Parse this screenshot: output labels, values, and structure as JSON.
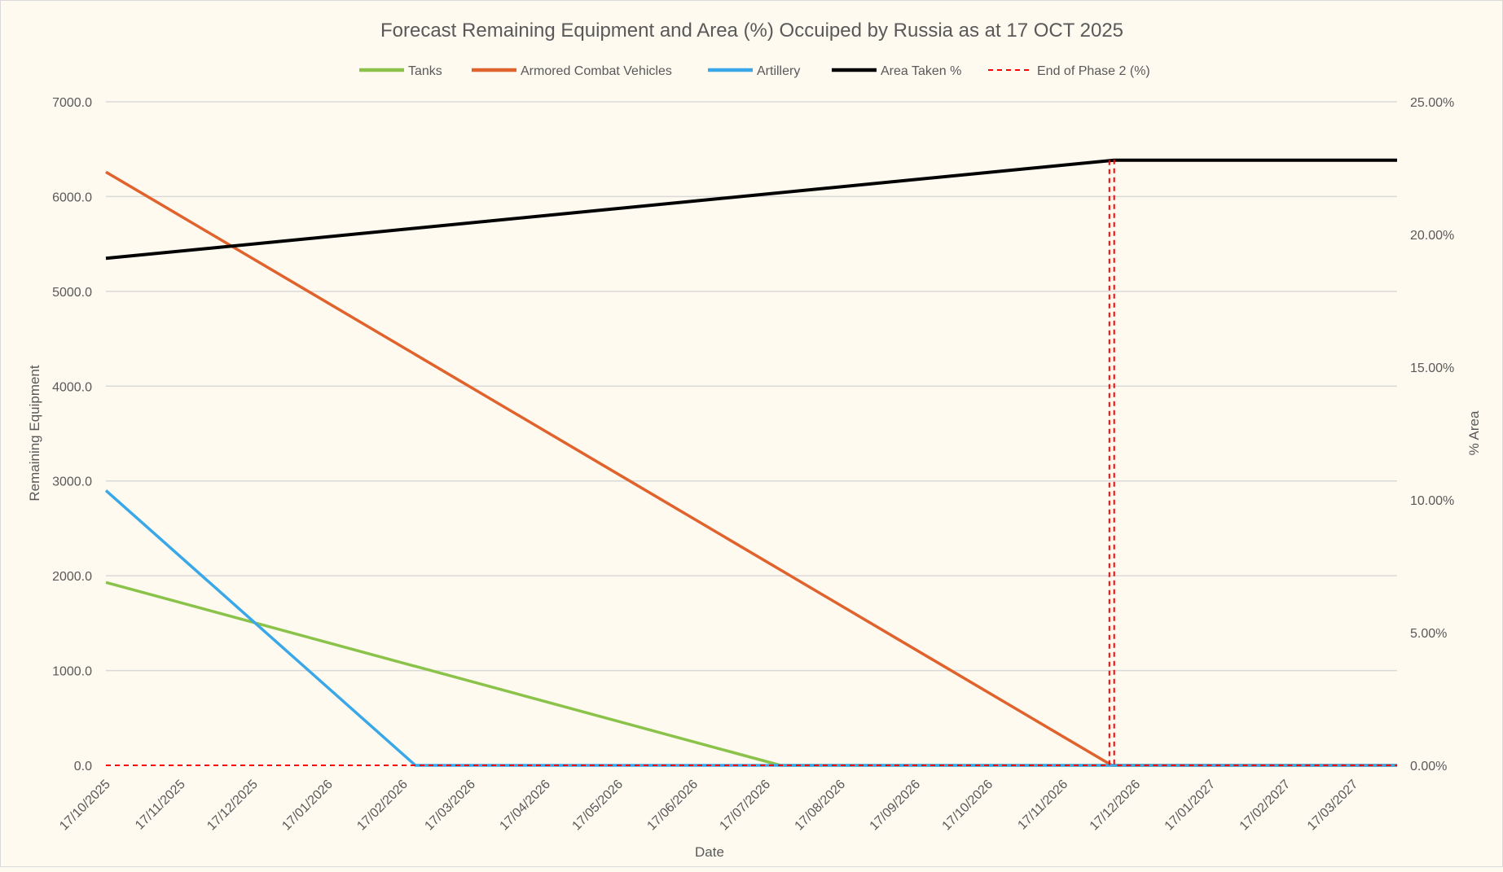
{
  "chart_data": {
    "type": "line",
    "title": "Forecast Remaining Equipment and Area (%) Occuiped by Russia as at 17 OCT 2025",
    "xlabel": "Date",
    "ylabel": "Remaining Equipment",
    "y2label": "% Area",
    "ylim": [
      0,
      7000
    ],
    "y2lim": [
      0,
      25
    ],
    "xlim": [
      "17/10/2025",
      "04/04/2027"
    ],
    "grid": true,
    "legend_position": "top",
    "yticks": [
      "0.0",
      "1000.0",
      "2000.0",
      "3000.0",
      "4000.0",
      "5000.0",
      "6000.0",
      "7000.0"
    ],
    "y2ticks": [
      "0.00%",
      "5.00%",
      "10.00%",
      "15.00%",
      "20.00%",
      "25.00%"
    ],
    "xticks": [
      "17/10/2025",
      "17/11/2025",
      "17/12/2025",
      "17/01/2026",
      "17/02/2026",
      "17/03/2026",
      "17/04/2026",
      "17/05/2026",
      "17/06/2026",
      "17/07/2026",
      "17/08/2026",
      "17/09/2026",
      "17/10/2026",
      "17/11/2026",
      "17/12/2026",
      "17/01/2027",
      "17/02/2027",
      "17/03/2027"
    ],
    "series": [
      {
        "name": "Tanks",
        "axis": "left",
        "color": "#8bc34a",
        "dash": false,
        "points": [
          [
            "17/10/2025",
            1930
          ],
          [
            "23/07/2026",
            0
          ],
          [
            "04/04/2027",
            0
          ]
        ]
      },
      {
        "name": "Armored Combat Vehicles",
        "axis": "left",
        "color": "#e0622c",
        "dash": false,
        "points": [
          [
            "17/10/2025",
            6260
          ],
          [
            "07/12/2026",
            0
          ],
          [
            "04/04/2027",
            0
          ]
        ]
      },
      {
        "name": "Artillery",
        "axis": "left",
        "color": "#3aa8e8",
        "dash": false,
        "points": [
          [
            "17/10/2025",
            2900
          ],
          [
            "22/02/2026",
            0
          ],
          [
            "04/04/2027",
            0
          ]
        ]
      },
      {
        "name": "Area Taken %",
        "axis": "right",
        "color": "#000000",
        "dash": false,
        "points": [
          [
            "17/10/2025",
            19.1
          ],
          [
            "08/12/2026",
            22.8
          ],
          [
            "04/04/2027",
            22.8
          ]
        ]
      },
      {
        "name": "End of Phase 2 (%)",
        "axis": "right",
        "color": "#ff0000",
        "dash": true,
        "points": [
          [
            "17/10/2025",
            0
          ],
          [
            "06/12/2026",
            0
          ],
          [
            "06/12/2026",
            22.8
          ],
          [
            "08/12/2026",
            22.8
          ],
          [
            "08/12/2026",
            0
          ],
          [
            "04/04/2027",
            0
          ]
        ]
      }
    ]
  }
}
